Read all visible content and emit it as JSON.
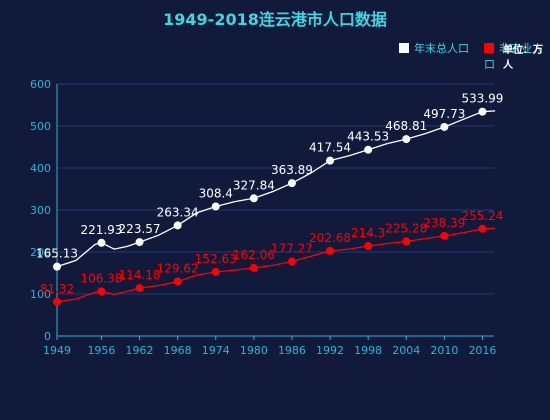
{
  "colors": {
    "background": "#111a3a",
    "title": "#3ed6e3",
    "axis": "#2bb3d6",
    "grid": "#1f3b7a",
    "series_total": "#ffffff",
    "series_nonag": "#ff0000"
  },
  "chart_data": {
    "type": "line",
    "title": "1949-2018连云港市人口数据",
    "unit_label": "单位：万人",
    "x_tick_labels": [
      "1949",
      "1956",
      "1962",
      "1968",
      "1974",
      "1980",
      "1986",
      "1992",
      "1998",
      "2004",
      "2010",
      "2016"
    ],
    "x_range": [
      1949,
      2018
    ],
    "ylim": [
      0,
      600
    ],
    "y_ticks": [
      0,
      100,
      200,
      300,
      400,
      500,
      600
    ],
    "grid": true,
    "legend_position": "top-right",
    "series": [
      {
        "name": "年末总人口",
        "color": "#ffffff",
        "points": [
          {
            "x": 1949,
            "y": 165.13
          },
          {
            "x": 1952,
            "y": 180
          },
          {
            "x": 1955,
            "y": 218
          },
          {
            "x": 1956,
            "y": 221.93
          },
          {
            "x": 1958,
            "y": 207
          },
          {
            "x": 1960,
            "y": 213
          },
          {
            "x": 1962,
            "y": 223.57
          },
          {
            "x": 1965,
            "y": 240
          },
          {
            "x": 1968,
            "y": 263.34
          },
          {
            "x": 1971,
            "y": 293
          },
          {
            "x": 1974,
            "y": 308.4
          },
          {
            "x": 1977,
            "y": 320
          },
          {
            "x": 1980,
            "y": 327.84
          },
          {
            "x": 1983,
            "y": 344
          },
          {
            "x": 1986,
            "y": 363.89
          },
          {
            "x": 1989,
            "y": 388
          },
          {
            "x": 1992,
            "y": 417.54
          },
          {
            "x": 1995,
            "y": 429
          },
          {
            "x": 1998,
            "y": 443.53
          },
          {
            "x": 2001,
            "y": 458
          },
          {
            "x": 2004,
            "y": 468.81
          },
          {
            "x": 2007,
            "y": 482
          },
          {
            "x": 2010,
            "y": 497.73
          },
          {
            "x": 2013,
            "y": 516
          },
          {
            "x": 2016,
            "y": 533.99
          },
          {
            "x": 2018,
            "y": 536
          }
        ],
        "labeled_points": [
          {
            "x": 1949,
            "y": 165.13,
            "label": "165.13"
          },
          {
            "x": 1956,
            "y": 221.93,
            "label": "221.93"
          },
          {
            "x": 1962,
            "y": 223.57,
            "label": "223.57"
          },
          {
            "x": 1968,
            "y": 263.34,
            "label": "263.34"
          },
          {
            "x": 1974,
            "y": 308.4,
            "label": "308.4"
          },
          {
            "x": 1980,
            "y": 327.84,
            "label": "327.84"
          },
          {
            "x": 1986,
            "y": 363.89,
            "label": "363.89"
          },
          {
            "x": 1992,
            "y": 417.54,
            "label": "417.54"
          },
          {
            "x": 1998,
            "y": 443.53,
            "label": "443.53"
          },
          {
            "x": 2004,
            "y": 468.81,
            "label": "468.81"
          },
          {
            "x": 2010,
            "y": 497.73,
            "label": "497.73"
          },
          {
            "x": 2016,
            "y": 533.99,
            "label": "533.99"
          }
        ]
      },
      {
        "name": "非农业人口",
        "color": "#ff0000",
        "points": [
          {
            "x": 1949,
            "y": 81.32
          },
          {
            "x": 1952,
            "y": 88
          },
          {
            "x": 1955,
            "y": 104
          },
          {
            "x": 1956,
            "y": 106.38
          },
          {
            "x": 1958,
            "y": 99
          },
          {
            "x": 1960,
            "y": 106
          },
          {
            "x": 1962,
            "y": 114.18
          },
          {
            "x": 1965,
            "y": 120
          },
          {
            "x": 1968,
            "y": 129.62
          },
          {
            "x": 1971,
            "y": 145
          },
          {
            "x": 1974,
            "y": 152.63
          },
          {
            "x": 1977,
            "y": 157
          },
          {
            "x": 1980,
            "y": 162.06
          },
          {
            "x": 1983,
            "y": 168
          },
          {
            "x": 1986,
            "y": 177.27
          },
          {
            "x": 1989,
            "y": 190
          },
          {
            "x": 1992,
            "y": 202.68
          },
          {
            "x": 1995,
            "y": 207
          },
          {
            "x": 1998,
            "y": 214.3
          },
          {
            "x": 2001,
            "y": 220
          },
          {
            "x": 2004,
            "y": 225.28
          },
          {
            "x": 2007,
            "y": 232
          },
          {
            "x": 2010,
            "y": 238.39
          },
          {
            "x": 2013,
            "y": 246
          },
          {
            "x": 2016,
            "y": 255.24
          },
          {
            "x": 2018,
            "y": 257
          }
        ],
        "labeled_points": [
          {
            "x": 1949,
            "y": 81.32,
            "label": "81.32"
          },
          {
            "x": 1956,
            "y": 106.38,
            "label": "106.38"
          },
          {
            "x": 1962,
            "y": 114.18,
            "label": "114.18"
          },
          {
            "x": 1968,
            "y": 129.62,
            "label": "129.62"
          },
          {
            "x": 1974,
            "y": 152.63,
            "label": "152.63"
          },
          {
            "x": 1980,
            "y": 162.06,
            "label": "162.06"
          },
          {
            "x": 1986,
            "y": 177.27,
            "label": "177.27"
          },
          {
            "x": 1992,
            "y": 202.68,
            "label": "202.68"
          },
          {
            "x": 1998,
            "y": 214.3,
            "label": "214.3"
          },
          {
            "x": 2004,
            "y": 225.28,
            "label": "225.28"
          },
          {
            "x": 2010,
            "y": 238.39,
            "label": "238.39"
          },
          {
            "x": 2016,
            "y": 255.24,
            "label": "255.24"
          }
        ]
      }
    ]
  }
}
